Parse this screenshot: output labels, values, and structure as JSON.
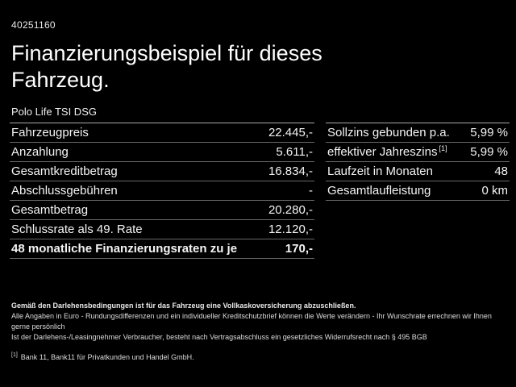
{
  "page": {
    "vehicle_id": "40251160",
    "title_line1": "Finanzierungsbeispiel für dieses",
    "title_line2": "Fahrzeug.",
    "vehicle_model": "Polo Life TSI DSG"
  },
  "finance_table": {
    "rows": [
      {
        "label": "Fahrzeugpreis",
        "value": "22.445,-"
      },
      {
        "label": "Anzahlung",
        "value": "5.611,-"
      },
      {
        "label": "Gesamtkreditbetrag",
        "value": "16.834,-"
      },
      {
        "label": "Abschlussgebühren",
        "value": "-"
      },
      {
        "label": "Gesamtbetrag",
        "value": "20.280,-"
      },
      {
        "label": "Schlussrate als 49. Rate",
        "value": "12.120,-"
      },
      {
        "label": "48 monatliche Finanzierungsraten zu je",
        "value": "170,-"
      }
    ]
  },
  "conditions_table": {
    "rows": [
      {
        "label": "Sollzins gebunden p.a.",
        "value": "5,99 %"
      },
      {
        "label": "effektiver Jahreszins",
        "superscript": "[1]",
        "value": "5,99 %"
      },
      {
        "label": "Laufzeit in Monaten",
        "value": "48"
      },
      {
        "label": "Gesamtlaufleistung",
        "value": "0 km"
      }
    ]
  },
  "footnotes": {
    "line1": "Gemäß den Darlehensbedingungen ist für das Fahrzeug eine Vollkaskoversicherung abzuschließen.",
    "line2": "Alle Angaben in Euro - Rundungsdifferenzen und ein individueller Kreditschutzbrief können die Werte verändern - Ihr Wunschrate errechnen wir Ihnen gerne persönlich",
    "line3": "Ist der Darlehens-/Leasingnehmer Verbraucher, besteht nach Vertragsabschluss ein gesetzliches Widerrufsrecht nach § 495 BGB",
    "bank_ref_marker": "[1]",
    "bank_ref_text": "Bank 11, Bank11 für Privatkunden und Handel GmbH."
  },
  "colors": {
    "background": "#000000",
    "text": "#f2f2f2",
    "separator": "#686868",
    "separator_top": "#a8a8a8"
  }
}
